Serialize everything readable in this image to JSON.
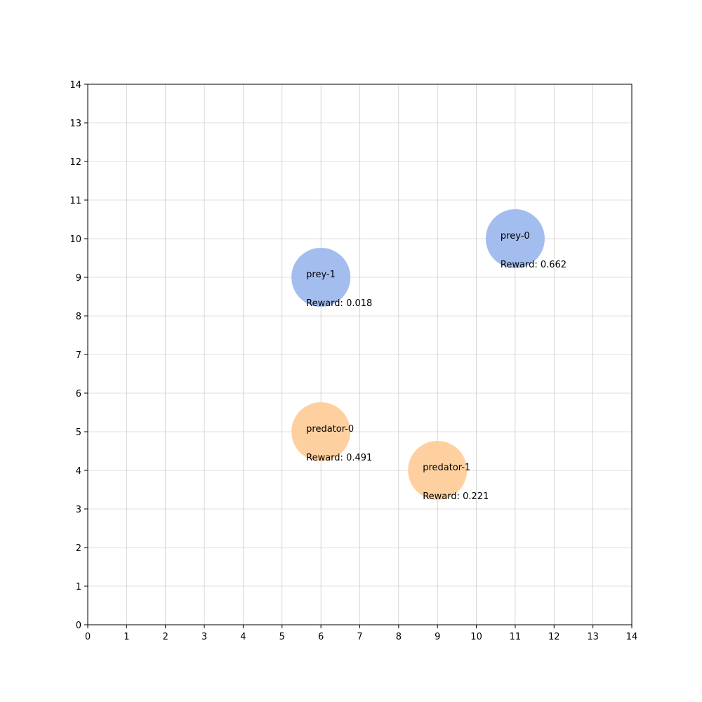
{
  "chart_data": {
    "type": "scatter",
    "title": "",
    "xlabel": "",
    "ylabel": "",
    "xlim": [
      0,
      14
    ],
    "ylim": [
      0,
      14
    ],
    "grid": true,
    "xticks": [
      "0",
      "1",
      "2",
      "3",
      "4",
      "5",
      "6",
      "7",
      "8",
      "9",
      "10",
      "11",
      "12",
      "13",
      "14"
    ],
    "yticks": [
      "0",
      "1",
      "2",
      "3",
      "4",
      "5",
      "6",
      "7",
      "8",
      "9",
      "10",
      "11",
      "12",
      "13",
      "14"
    ],
    "colors": {
      "prey": "#a3bdee",
      "predator": "#ffd09f",
      "grid": "#bfbfbf",
      "axis": "#000000"
    },
    "agents": [
      {
        "name": "prey-0",
        "kind": "prey",
        "x": 11,
        "y": 10,
        "reward": "Reward: 0.662"
      },
      {
        "name": "prey-1",
        "kind": "prey",
        "x": 6,
        "y": 9,
        "reward": "Reward: 0.018"
      },
      {
        "name": "predator-0",
        "kind": "predator",
        "x": 6,
        "y": 5,
        "reward": "Reward: 0.491"
      },
      {
        "name": "predator-1",
        "kind": "predator",
        "x": 9,
        "y": 4,
        "reward": "Reward: 0.221"
      }
    ]
  }
}
